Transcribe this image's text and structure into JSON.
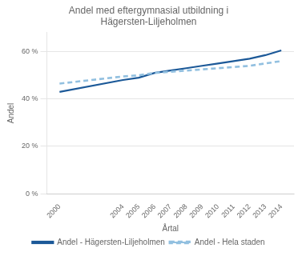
{
  "chart_data": {
    "type": "line",
    "title": "Andel med eftergymnasial utbildning i Hägersten-Liljeholmen",
    "x_label": "Årtal",
    "y_label": "Andel",
    "x": [
      2000,
      2004,
      2005,
      2006,
      2007,
      2008,
      2009,
      2010,
      2011,
      2012,
      2013,
      2014
    ],
    "series": [
      {
        "name": "Andel - Hela staden",
        "color": "#92c0e0",
        "line_style": "dashed",
        "values": [
          46.5,
          49.5,
          50,
          51,
          51.5,
          52,
          52.5,
          53,
          53.5,
          54,
          55,
          56
        ]
      },
      {
        "name": "Andel - Hägersten-Liljeholmen",
        "color": "#1c5998",
        "line_style": "solid",
        "values": [
          43,
          48,
          49,
          51,
          52,
          53,
          54,
          55,
          56,
          57,
          58.5,
          60.5
        ]
      }
    ],
    "xlim": [
      1999.2,
      2014.8
    ],
    "xticks": [
      2000,
      2004,
      2005,
      2006,
      2007,
      2008,
      2009,
      2010,
      2011,
      2012,
      2013,
      2014
    ],
    "ylim": [
      0,
      68
    ],
    "yticks": [
      {
        "value": 0,
        "label": "0 %"
      },
      {
        "value": 20,
        "label": "20 %"
      },
      {
        "value": 40,
        "label": "40 %"
      },
      {
        "value": 60,
        "label": "60 %"
      }
    ],
    "grid": true,
    "legend": "bottom"
  }
}
